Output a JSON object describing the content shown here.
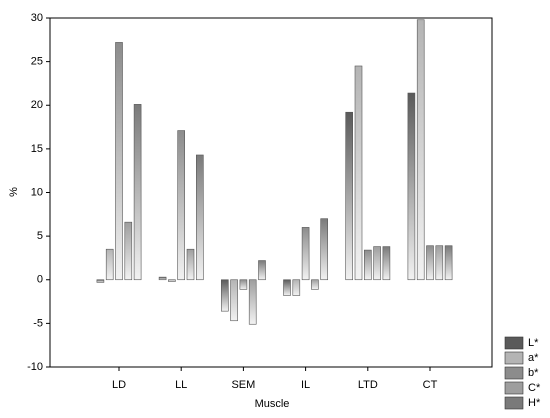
{
  "chart_data": {
    "type": "bar",
    "x_label": "Muscle",
    "y_label": "%",
    "categories": [
      "LD",
      "LL",
      "SEM",
      "IL",
      "LTD",
      "CT"
    ],
    "series": [
      {
        "name": "L*",
        "color": "#5a5a5a",
        "values": [
          -0.3,
          0.3,
          -3.6,
          -1.8,
          19.2,
          21.4
        ]
      },
      {
        "name": "a*",
        "color": "#b4b4b4",
        "values": [
          3.5,
          -0.2,
          -4.7,
          -1.8,
          24.5,
          29.8
        ]
      },
      {
        "name": "b*",
        "color": "#8c8c8c",
        "values": [
          27.2,
          17.1,
          -1.1,
          6.0,
          3.4,
          3.9
        ]
      },
      {
        "name": "C*",
        "color": "#9e9e9e",
        "values": [
          6.6,
          3.5,
          -5.1,
          -1.1,
          3.8,
          3.9
        ]
      },
      {
        "name": "H*",
        "color": "#7a7a7a",
        "values": [
          20.1,
          14.3,
          2.2,
          7.0,
          3.8,
          3.9
        ]
      }
    ],
    "ylim": [
      -10,
      30
    ],
    "yticks": [
      -10,
      -5,
      0,
      5,
      10,
      15,
      20,
      25,
      30
    ]
  }
}
